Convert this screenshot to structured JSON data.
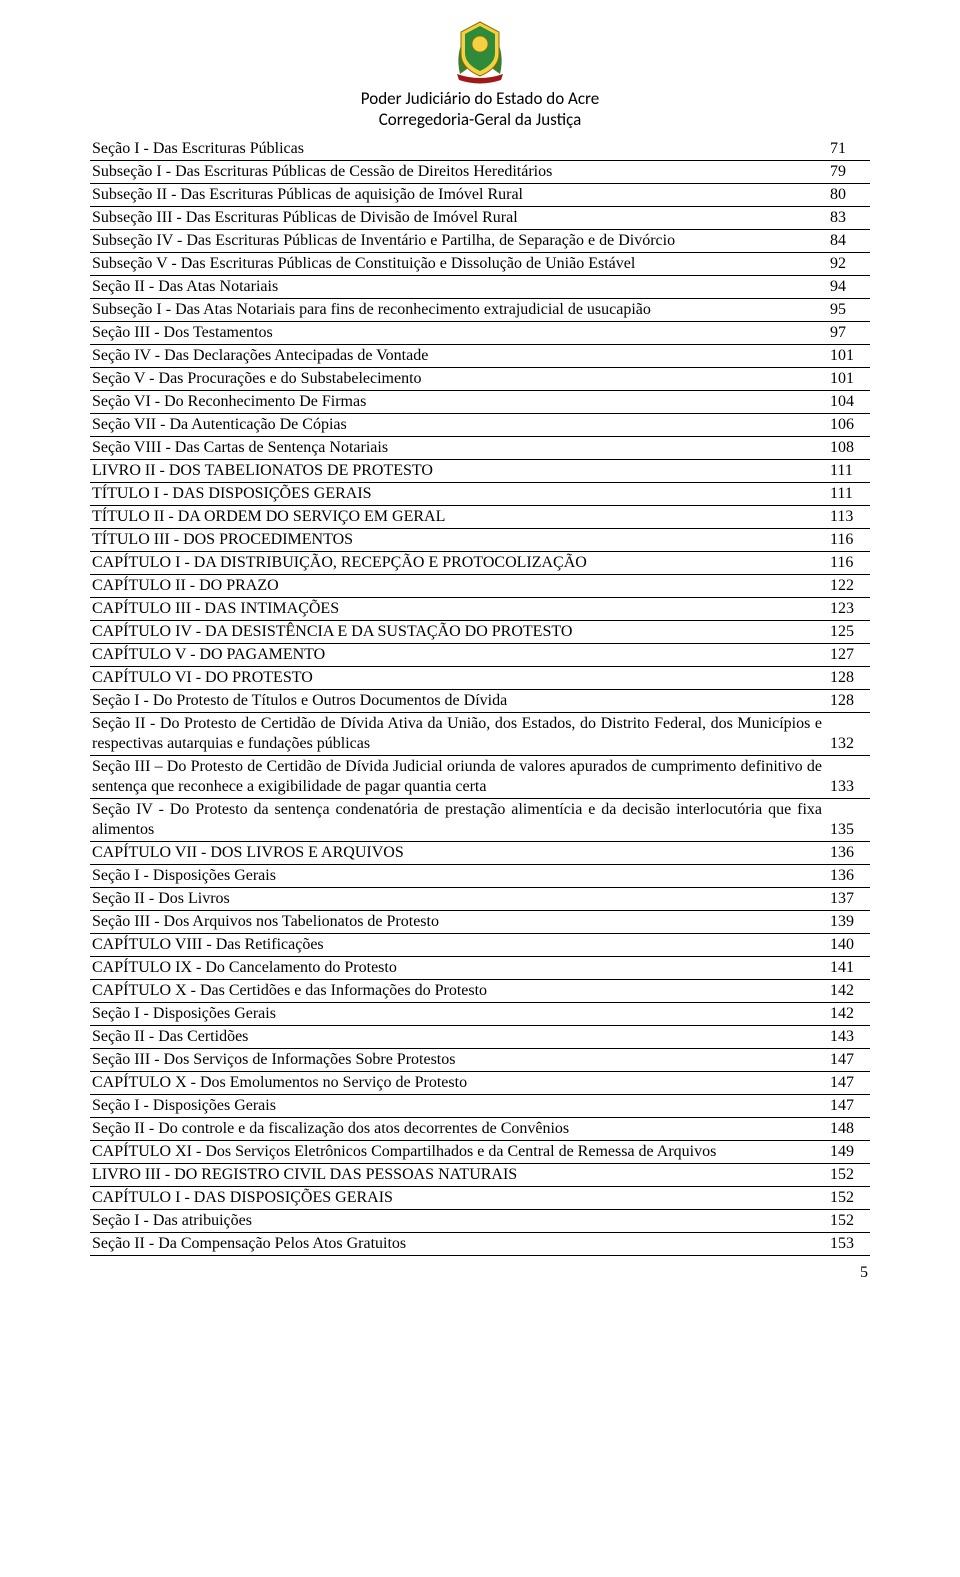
{
  "header": {
    "line1": "Poder Judiciário do Estado do Acre",
    "line2": "Corregedoria-Geral da Justiça"
  },
  "footer_page": "5",
  "emblem_colors": {
    "shield_green": "#2e8b3a",
    "shield_yellow": "#f5d040",
    "ribbon_red": "#a01818",
    "branch_green": "#3a7d2f"
  },
  "rows": [
    {
      "indent": 2,
      "label": "Seção I - Das Escrituras Públicas",
      "page": "71"
    },
    {
      "indent": 3,
      "label": "Subseção I - Das Escrituras Públicas de Cessão de Direitos Hereditários",
      "page": "79"
    },
    {
      "indent": 3,
      "label": "Subseção II - Das Escrituras Públicas de aquisição de Imóvel Rural",
      "page": "80"
    },
    {
      "indent": 3,
      "label": "Subseção III - Das Escrituras Públicas de Divisão de Imóvel Rural",
      "page": "83"
    },
    {
      "indent": 3,
      "label": "Subseção IV - Das Escrituras Públicas de Inventário e Partilha, de Separação e de Divórcio",
      "page": "84"
    },
    {
      "indent": 3,
      "label": "Subseção V - Das Escrituras Públicas de Constituição e Dissolução de União Estável",
      "page": "92"
    },
    {
      "indent": 2,
      "label": "Seção II - Das Atas Notariais",
      "page": "94"
    },
    {
      "indent": 3,
      "label": "Subseção I - Das Atas Notariais para fins de reconhecimento extrajudicial de usucapião",
      "page": "95"
    },
    {
      "indent": 2,
      "label": "Seção III - Dos Testamentos",
      "page": "97"
    },
    {
      "indent": 2,
      "label": "Seção IV - Das Declarações Antecipadas de Vontade",
      "page": "101"
    },
    {
      "indent": 2,
      "label": "Seção V - Das Procurações e do Substabelecimento",
      "page": "101"
    },
    {
      "indent": 2,
      "label": "Seção VI - Do Reconhecimento De Firmas",
      "page": "104"
    },
    {
      "indent": 2,
      "label": "Seção VII - Da Autenticação De Cópias",
      "page": "106"
    },
    {
      "indent": 2,
      "label": "Seção VIII - Das Cartas de Sentença Notariais",
      "page": "108"
    },
    {
      "indent": 0,
      "label": "LIVRO II - DOS TABELIONATOS DE PROTESTO",
      "page": "111"
    },
    {
      "indent": 0,
      "label": "TÍTULO I - DAS DISPOSIÇÕES GERAIS",
      "page": "111"
    },
    {
      "indent": 0,
      "label": "TÍTULO II - DA ORDEM DO SERVIÇO EM GERAL",
      "page": "113"
    },
    {
      "indent": 0,
      "label": "TÍTULO III - DOS PROCEDIMENTOS",
      "page": "116"
    },
    {
      "indent": 1,
      "label": "CAPÍTULO I - DA DISTRIBUIÇÃO, RECEPÇÃO E PROTOCOLIZAÇÃO",
      "page": "116"
    },
    {
      "indent": 1,
      "label": "CAPÍTULO II - DO PRAZO",
      "page": "122"
    },
    {
      "indent": 1,
      "label": "CAPÍTULO III - DAS INTIMAÇÕES",
      "page": "123"
    },
    {
      "indent": 1,
      "label": "CAPÍTULO IV - DA DESISTÊNCIA E DA SUSTAÇÃO DO PROTESTO",
      "page": "125"
    },
    {
      "indent": 1,
      "label": "CAPÍTULO V - DO PAGAMENTO",
      "page": "127"
    },
    {
      "indent": 1,
      "label": "CAPÍTULO VI - DO PROTESTO",
      "page": "128"
    },
    {
      "indent": 2,
      "label": "Seção I  - Do Protesto de Títulos e Outros Documentos de Dívida",
      "page": "128"
    },
    {
      "indent": 2,
      "label": "Seção II - Do Protesto de Certidão de Dívida Ativa da União, dos Estados, do Distrito Federal, dos Municípios e respectivas autarquias e fundações públicas",
      "page": "132"
    },
    {
      "indent": 2,
      "label": "Seção III – Do Protesto de Certidão de Dívida Judicial oriunda de valores apurados de cumprimento definitivo de sentença que reconhece a exigibilidade de pagar quantia certa",
      "page": "133"
    },
    {
      "indent": 2,
      "label": "Seção IV - Do Protesto da sentença condenatória de prestação alimentícia e da decisão interlocutória que fixa alimentos",
      "page": "135"
    },
    {
      "indent": 1,
      "label": "CAPÍTULO VII - DOS LIVROS E ARQUIVOS",
      "page": "136"
    },
    {
      "indent": 2,
      "label": "Seção I - Disposições Gerais",
      "page": "136"
    },
    {
      "indent": 2,
      "label": "Seção II - Dos Livros",
      "page": "137"
    },
    {
      "indent": 2,
      "label": "Seção III - Dos Arquivos nos Tabelionatos de Protesto",
      "page": "139"
    },
    {
      "indent": 1,
      "label": "CAPÍTULO VIII - Das Retificações",
      "page": "140"
    },
    {
      "indent": 1,
      "label": "CAPÍTULO IX - Do Cancelamento do Protesto",
      "page": "141"
    },
    {
      "indent": 1,
      "label": "CAPÍTULO X - Das Certidões e das Informações do Protesto",
      "page": "142"
    },
    {
      "indent": 2,
      "label": "Seção I - Disposições Gerais",
      "page": "142"
    },
    {
      "indent": 2,
      "label": "Seção II - Das Certidões",
      "page": "143"
    },
    {
      "indent": 2,
      "label": "Seção III - Dos Serviços de Informações Sobre Protestos",
      "page": "147"
    },
    {
      "indent": 1,
      "label": "CAPÍTULO X - Dos Emolumentos no Serviço de Protesto",
      "page": "147"
    },
    {
      "indent": 2,
      "label": "Seção I - Disposições Gerais",
      "page": "147"
    },
    {
      "indent": 2,
      "label": "Seção II - Do controle e da fiscalização dos atos decorrentes de Convênios",
      "page": "148"
    },
    {
      "indent": 1,
      "label": "CAPÍTULO XI - Dos Serviços Eletrônicos Compartilhados e da Central de Remessa de Arquivos",
      "page": "149"
    },
    {
      "indent": 0,
      "label": "LIVRO III - DO REGISTRO CIVIL DAS PESSOAS NATURAIS",
      "page": "152"
    },
    {
      "indent": 1,
      "label": "CAPÍTULO I - DAS DISPOSIÇÕES GERAIS",
      "page": "152"
    },
    {
      "indent": 2,
      "label": "Seção I - Das atribuições",
      "page": "152"
    },
    {
      "indent": 2,
      "label": "Seção II - Da Compensação Pelos Atos Gratuitos",
      "page": "153"
    }
  ]
}
